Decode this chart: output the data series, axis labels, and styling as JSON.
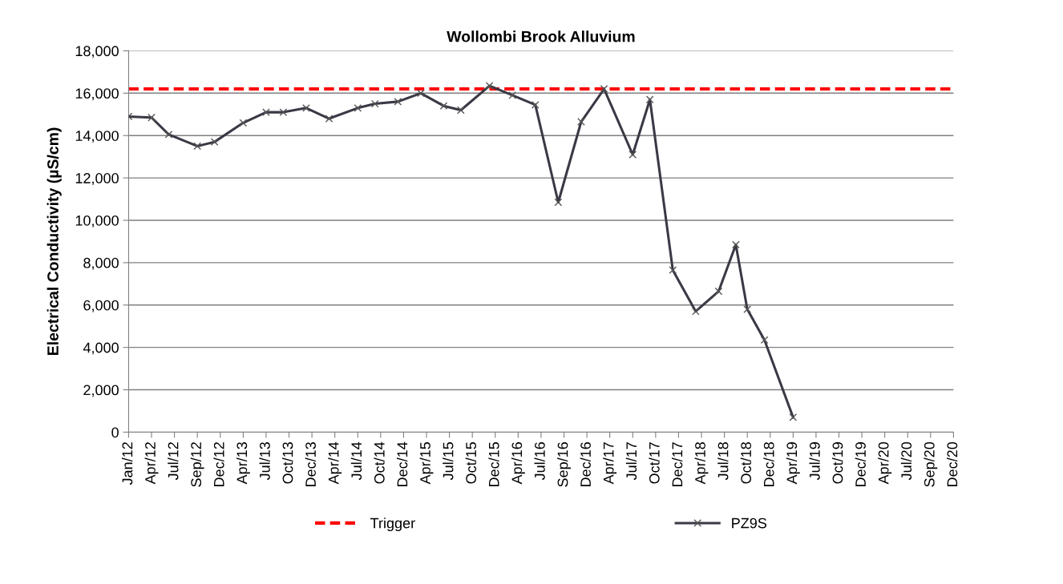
{
  "chart_data": {
    "type": "line",
    "title": "Wollombi Brook Alluvium",
    "ylabel": "Electrical Conductivity (µS/cm)",
    "categories": [
      "Jan/12",
      null,
      null,
      null,
      "Apr/12",
      null,
      null,
      null,
      "Jul/12",
      null,
      null,
      null,
      "Sep/12",
      null,
      null,
      null,
      "Dec/12",
      null,
      null,
      null,
      "Apr/13",
      null,
      null,
      null,
      "Jul/13",
      null,
      null,
      null,
      "Oct/13",
      null,
      null,
      null,
      "Dec/13",
      null,
      null,
      null,
      "Apr/14",
      null,
      null,
      null,
      "Jul/14",
      null,
      null,
      null,
      "Oct/14",
      null,
      null,
      null,
      "Dec/14",
      null,
      null,
      null,
      "Apr/15",
      null,
      null,
      null,
      "Jul/15",
      null,
      null,
      null,
      "Oct/15",
      null,
      null,
      null,
      "Dec/15",
      null,
      null,
      null,
      "Apr/16",
      null,
      null,
      null,
      "Jul/16",
      null,
      null,
      null,
      "Sep/16",
      null,
      null,
      null,
      "Dec/16",
      null,
      null,
      null,
      "Apr/17",
      null,
      null,
      null,
      "Jul/17",
      null,
      null,
      null,
      "Oct/17",
      null,
      null,
      null,
      "Dec/17",
      null,
      null,
      null,
      "Apr/18",
      null,
      null,
      null,
      "Jul/18",
      null,
      null,
      null,
      "Oct/18",
      null,
      null,
      null,
      "Dec/18",
      null,
      null,
      null,
      "Apr/19",
      null,
      null,
      null,
      "Jul/19",
      null,
      null,
      null,
      "Oct/19",
      null,
      null,
      null,
      "Dec/19",
      null,
      null,
      null,
      "Apr/20",
      null,
      null,
      null,
      "Jul/20",
      null,
      null,
      null,
      "Sep/20",
      null,
      null,
      null,
      "Dec/20"
    ],
    "ylim": [
      0,
      18000
    ],
    "yticks": [
      {
        "value": 0,
        "label": "0"
      },
      {
        "value": 2000,
        "label": "2,000"
      },
      {
        "value": 4000,
        "label": "4,000"
      },
      {
        "value": 6000,
        "label": "6,000"
      },
      {
        "value": 8000,
        "label": "8,000"
      },
      {
        "value": 10000,
        "label": "10,000"
      },
      {
        "value": 12000,
        "label": "12,000"
      },
      {
        "value": 14000,
        "label": "14,000"
      },
      {
        "value": 16000,
        "label": "16,000"
      },
      {
        "value": 18000,
        "label": "18,000"
      }
    ],
    "grid": "y",
    "legend": "bottom",
    "marker": "cross",
    "line_style": "solid",
    "ref_lines": [
      {
        "axis": "y",
        "value": 16200,
        "label": "Trigger",
        "color": "#ff0000",
        "line_style": "dashed"
      }
    ],
    "series": [
      {
        "name": "PZ9S",
        "color": "#3a3945",
        "values": [
          14900,
          null,
          null,
          null,
          14850,
          null,
          null,
          14050,
          null,
          null,
          null,
          null,
          13500,
          null,
          null,
          13700,
          null,
          null,
          null,
          null,
          14600,
          null,
          null,
          null,
          15100,
          null,
          null,
          15100,
          null,
          null,
          null,
          15300,
          null,
          null,
          null,
          14800,
          null,
          null,
          null,
          null,
          15300,
          null,
          null,
          15500,
          null,
          null,
          null,
          15600,
          null,
          null,
          null,
          16000,
          null,
          null,
          null,
          15400,
          null,
          null,
          15200,
          null,
          null,
          null,
          null,
          16350,
          null,
          null,
          null,
          15900,
          null,
          null,
          null,
          15450,
          null,
          null,
          null,
          10850,
          null,
          null,
          null,
          14650,
          null,
          null,
          null,
          16200,
          null,
          null,
          null,
          null,
          13100,
          null,
          null,
          15700,
          null,
          null,
          null,
          7650,
          null,
          null,
          null,
          5700,
          null,
          null,
          null,
          6650,
          null,
          null,
          8850,
          null,
          5800,
          null,
          null,
          4350,
          null,
          null,
          null,
          null,
          700,
          null,
          null,
          null,
          null,
          null,
          null,
          null,
          null,
          null,
          null,
          null,
          null,
          null,
          null,
          null,
          null,
          null,
          null,
          null,
          null,
          null,
          null,
          null,
          null,
          null,
          null,
          null,
          null
        ]
      }
    ]
  }
}
